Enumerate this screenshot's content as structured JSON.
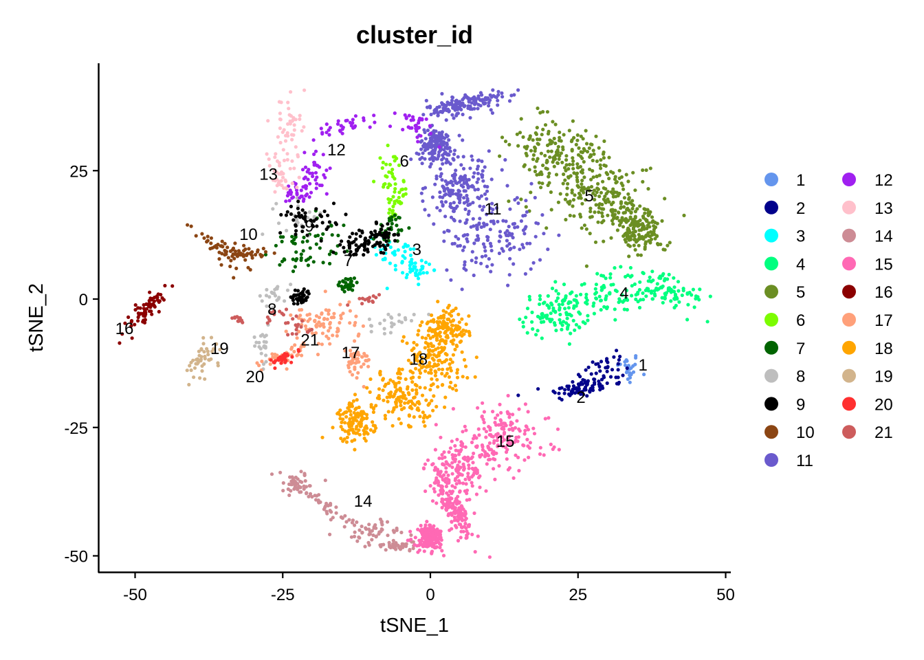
{
  "chart_data": {
    "type": "scatter",
    "title": "cluster_id",
    "xlabel": "tSNE_1",
    "ylabel": "tSNE_2",
    "xlim": [
      -56,
      51
    ],
    "ylim": [
      -53,
      46
    ],
    "xticks": [
      -50,
      -25,
      0,
      25,
      50
    ],
    "yticks": [
      -50,
      -25,
      0,
      25
    ],
    "xtick_labels": [
      "-50",
      "-25",
      "0",
      "25",
      "50"
    ],
    "ytick_labels": [
      "-50",
      "-25",
      "0",
      "25"
    ],
    "grid": false,
    "legend_position": "right",
    "legend_columns": 2,
    "point_size": 2.6,
    "clusters": [
      {
        "id": "1",
        "color": "#6495ED",
        "label_pos": [
          36.0,
          -12.7
        ],
        "n": 25,
        "shape": [
          [
            33.5,
            -13.5,
            1.2,
            2.0,
            0
          ]
        ]
      },
      {
        "id": "2",
        "color": "#00008B",
        "label_pos": [
          25.5,
          -19.0
        ],
        "n": 110,
        "shape": [
          [
            29.5,
            -14.5,
            3.5,
            2.2,
            35
          ],
          [
            24.5,
            -17.5,
            3.0,
            1.2,
            10
          ]
        ]
      },
      {
        "id": "3",
        "color": "#00FFFF",
        "label_pos": [
          -2.3,
          9.8
        ],
        "n": 70,
        "shape": [
          [
            -6.0,
            9.0,
            2.8,
            2.0,
            -30
          ],
          [
            -2.0,
            5.5,
            1.5,
            1.8,
            -40
          ]
        ]
      },
      {
        "id": "4",
        "color": "#00FF7F",
        "label_pos": [
          32.8,
          1.3
        ],
        "n": 280,
        "shape": [
          [
            29.0,
            0.5,
            4.5,
            3.0,
            0
          ],
          [
            21.0,
            -3.0,
            3.5,
            2.5,
            0
          ],
          [
            40.0,
            1.5,
            4.0,
            1.8,
            -30
          ]
        ]
      },
      {
        "id": "5",
        "color": "#6B8E23",
        "label_pos": [
          26.9,
          20.2
        ],
        "n": 520,
        "shape": [
          [
            22.0,
            28.0,
            5.0,
            4.0,
            -35
          ],
          [
            28.0,
            20.0,
            6.0,
            5.0,
            -35
          ],
          [
            35.0,
            14.0,
            3.5,
            2.5,
            -40
          ]
        ]
      },
      {
        "id": "6",
        "color": "#7CFC00",
        "label_pos": [
          -4.4,
          27.0
        ],
        "n": 60,
        "shape": [
          [
            -7.0,
            24.0,
            1.3,
            3.5,
            -10
          ],
          [
            -5.5,
            19.0,
            1.0,
            2.5,
            -20
          ]
        ]
      },
      {
        "id": "7",
        "color": "#006400",
        "label_pos": [
          -13.9,
          7.6
        ],
        "n": 110,
        "shape": [
          [
            -23.0,
            9.0,
            2.5,
            2.5,
            0
          ],
          [
            -6.0,
            14.0,
            2.0,
            1.5,
            30
          ],
          [
            -14.0,
            3.0,
            1.2,
            1.0,
            0
          ],
          [
            -18.0,
            12.0,
            3.0,
            3.0,
            0
          ]
        ]
      },
      {
        "id": "8",
        "color": "#BEBEBE",
        "label_pos": [
          -26.8,
          -1.9
        ],
        "n": 90,
        "shape": [
          [
            -28.5,
            -9.0,
            0.9,
            2.5,
            0
          ],
          [
            -26.5,
            1.0,
            1.8,
            1.5,
            0
          ],
          [
            -6.5,
            -4.5,
            2.5,
            1.2,
            10
          ],
          [
            -22.0,
            16.0,
            2.5,
            2.0,
            0
          ]
        ]
      },
      {
        "id": "9",
        "color": "#000000",
        "label_pos": [
          -20.5,
          14.3
        ],
        "n": 190,
        "shape": [
          [
            -20.0,
            15.5,
            3.5,
            1.8,
            -10
          ],
          [
            -12.5,
            10.5,
            2.5,
            1.5,
            0
          ],
          [
            -8.5,
            12.0,
            2.5,
            1.5,
            20
          ],
          [
            -22.0,
            0.5,
            1.0,
            1.0,
            0
          ]
        ]
      },
      {
        "id": "10",
        "color": "#8B4513",
        "label_pos": [
          -30.8,
          12.7
        ],
        "n": 80,
        "shape": [
          [
            -36.0,
            10.0,
            3.5,
            1.2,
            -40
          ],
          [
            -31.0,
            9.0,
            2.0,
            0.8,
            0
          ]
        ]
      },
      {
        "id": "11",
        "color": "#6A5ACD",
        "label_pos": [
          10.6,
          17.7
        ],
        "n": 620,
        "shape": [
          [
            10.5,
            12.5,
            5.5,
            5.0,
            0
          ],
          [
            5.0,
            22.0,
            3.0,
            4.0,
            -55
          ],
          [
            6.0,
            38.0,
            4.0,
            1.2,
            10
          ],
          [
            1.0,
            30.0,
            2.0,
            2.0,
            0
          ]
        ]
      },
      {
        "id": "12",
        "color": "#A020F0",
        "label_pos": [
          -15.9,
          29.2
        ],
        "n": 130,
        "shape": [
          [
            -14.0,
            34.0,
            3.5,
            1.0,
            25
          ],
          [
            -19.5,
            25.0,
            1.5,
            3.0,
            10
          ],
          [
            -3.0,
            34.0,
            3.0,
            1.5,
            -35
          ],
          [
            -22.0,
            21.0,
            1.5,
            1.5,
            0
          ]
        ]
      },
      {
        "id": "13",
        "color": "#FFC0CB",
        "label_pos": [
          -27.4,
          24.4
        ],
        "n": 80,
        "shape": [
          [
            -24.0,
            34.0,
            1.3,
            3.5,
            10
          ],
          [
            -25.5,
            24.0,
            1.8,
            3.5,
            0
          ]
        ]
      },
      {
        "id": "14",
        "color": "#CD8C95",
        "label_pos": [
          -11.4,
          -39.2
        ],
        "n": 180,
        "shape": [
          [
            -22.5,
            -36.0,
            2.5,
            1.5,
            0
          ],
          [
            -17.0,
            -41.0,
            4.5,
            0.7,
            -40
          ],
          [
            -10.0,
            -45.0,
            2.8,
            1.5,
            -10
          ],
          [
            -5.0,
            -48.0,
            3.0,
            0.6,
            0
          ]
        ]
      },
      {
        "id": "15",
        "color": "#FF69B4",
        "label_pos": [
          12.7,
          -27.6
        ],
        "n": 600,
        "shape": [
          [
            12.0,
            -27.0,
            5.0,
            4.0,
            0
          ],
          [
            5.0,
            -33.0,
            3.5,
            3.5,
            0
          ],
          [
            4.0,
            -41.0,
            1.2,
            4.0,
            25
          ],
          [
            0.0,
            -46.5,
            1.5,
            1.5,
            30
          ]
        ]
      },
      {
        "id": "16",
        "color": "#8B0000",
        "label_pos": [
          -51.8,
          -5.6
        ],
        "n": 70,
        "shape": [
          [
            -48.0,
            -2.0,
            3.0,
            0.9,
            50
          ]
        ]
      },
      {
        "id": "17",
        "color": "#FFA07A",
        "label_pos": [
          -13.5,
          -10.3
        ],
        "n": 160,
        "shape": [
          [
            -16.0,
            -4.5,
            2.5,
            2.5,
            0
          ],
          [
            -20.0,
            -5.0,
            2.0,
            2.0,
            0
          ],
          [
            -12.5,
            -12.0,
            1.5,
            1.8,
            0
          ],
          [
            -24.5,
            -11.0,
            2.5,
            1.0,
            20
          ]
        ]
      },
      {
        "id": "18",
        "color": "#FFA500",
        "label_pos": [
          -2.0,
          -11.6
        ],
        "n": 520,
        "shape": [
          [
            0.5,
            -12.0,
            3.5,
            3.5,
            0
          ],
          [
            -4.5,
            -19.5,
            3.5,
            3.0,
            -30
          ],
          [
            -12.5,
            -24.0,
            2.0,
            2.5,
            0
          ],
          [
            2.5,
            -6.0,
            2.5,
            2.5,
            0
          ]
        ]
      },
      {
        "id": "19",
        "color": "#D2B48C",
        "label_pos": [
          -35.7,
          -9.5
        ],
        "n": 45,
        "shape": [
          [
            -39.0,
            -12.0,
            1.2,
            2.5,
            -30
          ]
        ]
      },
      {
        "id": "20",
        "color": "#FF3030",
        "label_pos": [
          -29.7,
          -15.0
        ],
        "n": 30,
        "shape": [
          [
            -25.0,
            -11.5,
            2.0,
            0.6,
            25
          ]
        ]
      },
      {
        "id": "21",
        "color": "#CD5C5C",
        "label_pos": [
          -20.4,
          -7.8
        ],
        "n": 55,
        "shape": [
          [
            -25.5,
            -4.0,
            1.8,
            1.2,
            0
          ],
          [
            -22.0,
            -5.5,
            1.5,
            1.0,
            0
          ],
          [
            -10.5,
            0.0,
            1.5,
            0.5,
            20
          ],
          [
            -32.5,
            -4.0,
            0.6,
            0.3,
            -20
          ]
        ]
      }
    ]
  },
  "legend": {
    "col1": [
      "1",
      "2",
      "3",
      "4",
      "5",
      "6",
      "7",
      "8",
      "9",
      "10",
      "11"
    ],
    "col2": [
      "12",
      "13",
      "14",
      "15",
      "16",
      "17",
      "18",
      "19",
      "20",
      "21"
    ]
  }
}
